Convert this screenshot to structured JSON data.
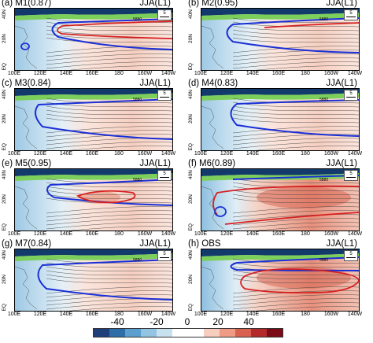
{
  "panels": [
    {
      "title": "(a) M1(0.87)",
      "season": "JJA(L1)",
      "variant": "a"
    },
    {
      "title": "(b) M2(0.95)",
      "season": "JJA(L1)",
      "variant": "b"
    },
    {
      "title": "(c) M3(0.84)",
      "season": "JJA(L1)",
      "variant": "c"
    },
    {
      "title": "(d) M4(0.83)",
      "season": "JJA(L1)",
      "variant": "d"
    },
    {
      "title": "(e) M5(0.95)",
      "season": "JJA(L1)",
      "variant": "e"
    },
    {
      "title": "(f) M6(0.89)",
      "season": "JJA(L1)",
      "variant": "f"
    },
    {
      "title": "(g) M7(0.84)",
      "season": "JJA(L1)",
      "variant": "g"
    },
    {
      "title": "(h) OBS",
      "season": "JJA(L1)",
      "variant": "h"
    }
  ],
  "y_ticks": [
    "40N",
    "20N",
    "EQ"
  ],
  "x_ticks": [
    "100E",
    "120E",
    "140E",
    "160E",
    "180",
    "160W",
    "140W"
  ],
  "ref_vector_label": "5",
  "contour_labels": [
    "5860",
    "5880"
  ],
  "colorbar": {
    "labels": [
      "-40",
      "-20",
      "0",
      "20",
      "40"
    ],
    "colors": [
      "#1f3f7a",
      "#2e6da8",
      "#5b9fcf",
      "#93c4e2",
      "#c8e1ef",
      "#ffffff",
      "#ffffff",
      "#f6cdbf",
      "#ee9a85",
      "#d8614f",
      "#b32a2a",
      "#7a0d15"
    ]
  }
}
